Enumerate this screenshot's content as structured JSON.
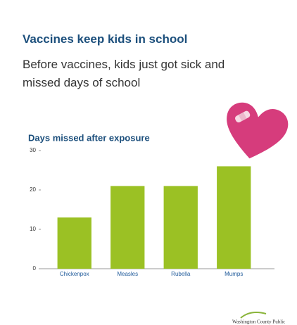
{
  "header": {
    "title": "Vaccines keep kids in school",
    "subtitle": "Before vaccines, kids just got sick and missed days of school"
  },
  "chart_data": {
    "type": "bar",
    "title": "Days missed after exposure",
    "categories": [
      "Chickenpox",
      "Measles",
      "Rubella",
      "Mumps"
    ],
    "values": [
      13,
      21,
      21,
      26
    ],
    "color": "#9bc124",
    "ylim": [
      0,
      30
    ],
    "yticks": [
      0,
      10,
      20,
      30
    ],
    "grid": false
  },
  "footer": {
    "logo_text": "Washington County Public"
  }
}
